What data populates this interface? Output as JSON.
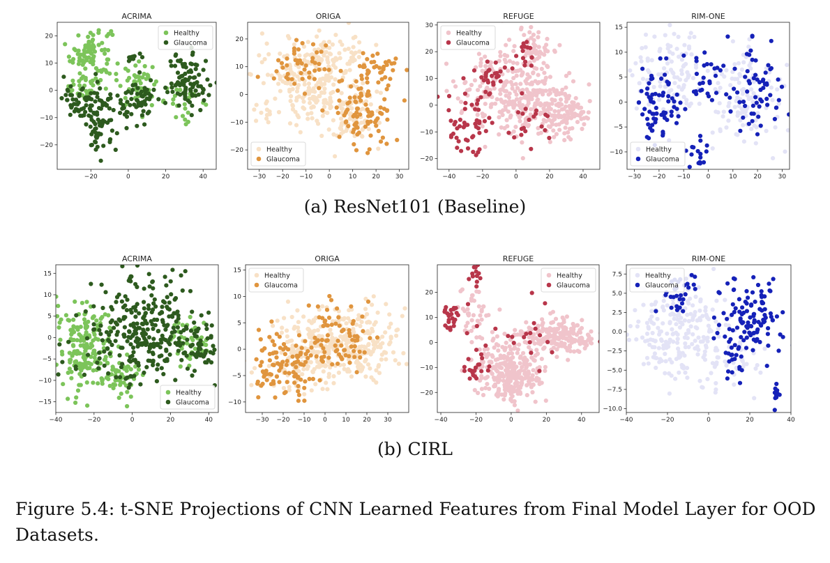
{
  "rows": [
    {
      "caption": "(a) ResNet101 (Baseline)"
    },
    {
      "caption": "(b) CIRL"
    }
  ],
  "figure_caption": "Figure 5.4: t-SNE Projections of CNN Learned Features from Final Model Layer for OOD Datasets.",
  "chart_data": [
    {
      "type": "scatter",
      "title": "ACRIMA",
      "row": 0,
      "col": 0,
      "xlim": [
        -38,
        47
      ],
      "ylim": [
        -29,
        25
      ],
      "xticks": [
        -20,
        0,
        20,
        40
      ],
      "yticks": [
        -20,
        -10,
        0,
        10,
        20
      ],
      "legend": "top-right",
      "series": [
        {
          "name": "Healthy",
          "color": "#7cc45a",
          "regions": [
            {
              "cx": -20,
              "cy": 14,
              "rx": 10,
              "ry": 9,
              "n": 90
            },
            {
              "cx": -25,
              "cy": 2,
              "rx": 8,
              "ry": 5,
              "n": 30
            },
            {
              "cx": 5,
              "cy": 2,
              "rx": 10,
              "ry": 7,
              "n": 45
            },
            {
              "cx": 30,
              "cy": -4,
              "rx": 10,
              "ry": 6,
              "n": 25
            }
          ]
        },
        {
          "name": "Glaucoma",
          "color": "#2d5a1e",
          "regions": [
            {
              "cx": -15,
              "cy": -12,
              "rx": 8,
              "ry": 11,
              "n": 70
            },
            {
              "cx": -25,
              "cy": -4,
              "rx": 9,
              "ry": 6,
              "n": 50
            },
            {
              "cx": 32,
              "cy": 3,
              "rx": 10,
              "ry": 9,
              "n": 90
            },
            {
              "cx": 5,
              "cy": -4,
              "rx": 10,
              "ry": 8,
              "n": 60
            },
            {
              "cx": 2,
              "cy": 12,
              "rx": 4,
              "ry": 2,
              "n": 10
            }
          ]
        }
      ]
    },
    {
      "type": "scatter",
      "title": "ORIGA",
      "row": 0,
      "col": 1,
      "xlim": [
        -35,
        34
      ],
      "ylim": [
        -27,
        26
      ],
      "xticks": [
        -30,
        -20,
        -10,
        0,
        10,
        20,
        30
      ],
      "yticks": [
        -20,
        -10,
        0,
        10,
        20
      ],
      "legend": "bottom-left",
      "series": [
        {
          "name": "Healthy",
          "color": "#f8e1c6",
          "regions": [
            {
              "cx": -10,
              "cy": 5,
              "rx": 18,
              "ry": 14,
              "n": 230
            },
            {
              "cx": 10,
              "cy": -8,
              "rx": 10,
              "ry": 10,
              "n": 80
            },
            {
              "cx": 5,
              "cy": 15,
              "rx": 10,
              "ry": 6,
              "n": 40
            }
          ]
        },
        {
          "name": "Glaucoma",
          "color": "#e0953e",
          "regions": [
            {
              "cx": 15,
              "cy": -6,
              "rx": 13,
              "ry": 12,
              "n": 95
            },
            {
              "cx": -12,
              "cy": 10,
              "rx": 12,
              "ry": 10,
              "n": 45
            },
            {
              "cx": 20,
              "cy": 10,
              "rx": 8,
              "ry": 6,
              "n": 30
            }
          ]
        }
      ]
    },
    {
      "type": "scatter",
      "title": "REFUGE",
      "row": 0,
      "col": 2,
      "xlim": [
        -47,
        50
      ],
      "ylim": [
        -24,
        31
      ],
      "xticks": [
        -40,
        -20,
        0,
        20,
        40
      ],
      "yticks": [
        -20,
        -10,
        0,
        10,
        20,
        30
      ],
      "legend": "top-left",
      "series": [
        {
          "name": "Healthy",
          "color": "#f0c4cb",
          "regions": [
            {
              "cx": 0,
              "cy": 5,
              "rx": 28,
              "ry": 14,
              "n": 300
            },
            {
              "cx": 28,
              "cy": -3,
              "rx": 16,
              "ry": 8,
              "n": 120
            },
            {
              "cx": 10,
              "cy": 22,
              "rx": 10,
              "ry": 6,
              "n": 50
            }
          ]
        },
        {
          "name": "Glaucoma",
          "color": "#b8364a",
          "regions": [
            {
              "cx": -30,
              "cy": -8,
              "rx": 12,
              "ry": 10,
              "n": 50
            },
            {
              "cx": -15,
              "cy": 10,
              "rx": 8,
              "ry": 6,
              "n": 25
            },
            {
              "cx": 5,
              "cy": 20,
              "rx": 6,
              "ry": 6,
              "n": 15
            },
            {
              "cx": 5,
              "cy": -5,
              "rx": 15,
              "ry": 10,
              "n": 20
            }
          ]
        }
      ]
    },
    {
      "type": "scatter",
      "title": "RIM-ONE",
      "row": 0,
      "col": 3,
      "xlim": [
        -33,
        33
      ],
      "ylim": [
        -13.5,
        16
      ],
      "xticks": [
        -30,
        -20,
        -10,
        0,
        10,
        20,
        30
      ],
      "yticks": [
        -10,
        -5,
        0,
        5,
        10,
        15
      ],
      "legend": "bottom-left",
      "series": [
        {
          "name": "Healthy",
          "color": "#e3e3f6",
          "regions": [
            {
              "cx": -15,
              "cy": 5,
              "rx": 14,
              "ry": 9,
              "n": 110
            },
            {
              "cx": 15,
              "cy": 2,
              "rx": 14,
              "ry": 10,
              "n": 110
            }
          ]
        },
        {
          "name": "Glaucoma",
          "color": "#1521b8",
          "regions": [
            {
              "cx": -20,
              "cy": 0,
              "rx": 10,
              "ry": 8,
              "n": 70
            },
            {
              "cx": 20,
              "cy": 3,
              "rx": 9,
              "ry": 9,
              "n": 60
            },
            {
              "cx": 0,
              "cy": 3,
              "rx": 7,
              "ry": 8,
              "n": 30
            },
            {
              "cx": -5,
              "cy": -10,
              "rx": 4,
              "ry": 3,
              "n": 15
            }
          ]
        }
      ]
    },
    {
      "type": "scatter",
      "title": "ACRIMA",
      "row": 1,
      "col": 0,
      "xlim": [
        -40,
        45
      ],
      "ylim": [
        -17.5,
        17
      ],
      "xticks": [
        -40,
        -20,
        0,
        20,
        40
      ],
      "yticks": [
        -15,
        -10,
        -5,
        0,
        5,
        10,
        15
      ],
      "legend": "bottom-right",
      "series": [
        {
          "name": "Healthy",
          "color": "#7cc45a",
          "regions": [
            {
              "cx": -25,
              "cy": -2,
              "rx": 12,
              "ry": 9,
              "n": 180
            },
            {
              "cx": 30,
              "cy": -1,
              "rx": 10,
              "ry": 5,
              "n": 40
            },
            {
              "cx": -5,
              "cy": -9,
              "rx": 10,
              "ry": 5,
              "n": 50
            }
          ]
        },
        {
          "name": "Glaucoma",
          "color": "#2d5a1e",
          "regions": [
            {
              "cx": 5,
              "cy": 2,
              "rx": 28,
              "ry": 11,
              "n": 300
            },
            {
              "cx": 35,
              "cy": -2,
              "rx": 8,
              "ry": 4,
              "n": 40
            }
          ]
        }
      ]
    },
    {
      "type": "scatter",
      "title": "ORIGA",
      "row": 1,
      "col": 1,
      "xlim": [
        -38,
        40
      ],
      "ylim": [
        -12,
        16
      ],
      "xticks": [
        -30,
        -20,
        -10,
        0,
        10,
        20,
        30
      ],
      "yticks": [
        -10,
        -5,
        0,
        5,
        10,
        15
      ],
      "legend": "top-left",
      "series": [
        {
          "name": "Healthy",
          "color": "#f8e1c6",
          "regions": [
            {
              "cx": 10,
              "cy": 1,
              "rx": 25,
              "ry": 7,
              "n": 300
            },
            {
              "cx": -15,
              "cy": -3,
              "rx": 15,
              "ry": 6,
              "n": 90
            }
          ]
        },
        {
          "name": "Glaucoma",
          "color": "#e0953e",
          "regions": [
            {
              "cx": -20,
              "cy": -3,
              "rx": 14,
              "ry": 6,
              "n": 100
            },
            {
              "cx": 5,
              "cy": 2,
              "rx": 15,
              "ry": 6,
              "n": 80
            }
          ]
        }
      ]
    },
    {
      "type": "scatter",
      "title": "REFUGE",
      "row": 1,
      "col": 2,
      "xlim": [
        -42,
        50
      ],
      "ylim": [
        -28,
        31
      ],
      "xticks": [
        -40,
        -20,
        0,
        20,
        40
      ],
      "yticks": [
        -20,
        -10,
        0,
        10,
        20
      ],
      "legend": "top-right",
      "series": [
        {
          "name": "Healthy",
          "color": "#f0c4cb",
          "regions": [
            {
              "cx": 0,
              "cy": -12,
              "rx": 18,
              "ry": 11,
              "n": 280
            },
            {
              "cx": 25,
              "cy": 3,
              "rx": 22,
              "ry": 6,
              "n": 200
            },
            {
              "cx": -22,
              "cy": 12,
              "rx": 8,
              "ry": 12,
              "n": 40
            }
          ]
        },
        {
          "name": "Glaucoma",
          "color": "#b8364a",
          "regions": [
            {
              "cx": -33,
              "cy": 10,
              "rx": 6,
              "ry": 5,
              "n": 25
            },
            {
              "cx": -20,
              "cy": 26,
              "rx": 3,
              "ry": 4,
              "n": 12
            },
            {
              "cx": -20,
              "cy": -10,
              "rx": 6,
              "ry": 6,
              "n": 20
            },
            {
              "cx": 10,
              "cy": 0,
              "rx": 25,
              "ry": 12,
              "n": 20
            }
          ]
        }
      ]
    },
    {
      "type": "scatter",
      "title": "RIM-ONE",
      "row": 1,
      "col": 3,
      "xlim": [
        -40,
        40
      ],
      "ylim": [
        -10.5,
        8.7
      ],
      "xticks": [
        -40,
        -20,
        0,
        20,
        40
      ],
      "yticks": [
        -10.0,
        -7.5,
        -5.0,
        -2.5,
        0.0,
        2.5,
        5.0,
        7.5
      ],
      "legend": "top-left",
      "series": [
        {
          "name": "Healthy",
          "color": "#e3e3f6",
          "regions": [
            {
              "cx": -15,
              "cy": 0,
              "rx": 20,
              "ry": 6,
              "n": 200
            },
            {
              "cx": 10,
              "cy": -3,
              "rx": 15,
              "ry": 5,
              "n": 60
            }
          ]
        },
        {
          "name": "Glaucoma",
          "color": "#1521b8",
          "regions": [
            {
              "cx": 20,
              "cy": 2,
              "rx": 14,
              "ry": 4,
              "n": 110
            },
            {
              "cx": 33,
              "cy": -8,
              "rx": 1,
              "ry": 2,
              "n": 15
            },
            {
              "cx": -15,
              "cy": 5,
              "rx": 10,
              "ry": 2.5,
              "n": 30
            },
            {
              "cx": 10,
              "cy": -4,
              "rx": 6,
              "ry": 3,
              "n": 20
            }
          ]
        }
      ]
    }
  ]
}
